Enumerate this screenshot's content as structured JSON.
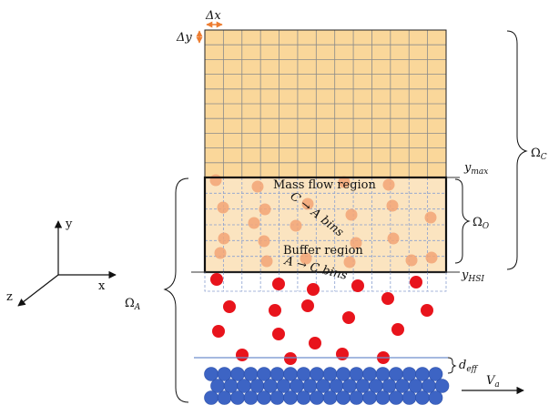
{
  "labels": {
    "dx": "Δx",
    "dy": "Δy",
    "ymax": "y",
    "ymax_sub": "max",
    "yhsi": "y",
    "yhsi_sub": "HSI",
    "deff": "d",
    "deff_sub": "eff",
    "va": "V",
    "va_sub": "a",
    "omega_c": "Ω",
    "omega_c_sub": "C",
    "omega_o": "Ω",
    "omega_o_sub": "O",
    "omega_a": "Ω",
    "omega_a_sub": "A",
    "mass_flow": "Mass flow region",
    "buffer": "Buffer region",
    "c_to_a": "C → A bins",
    "a_to_c": "A → C bins",
    "axis_x": "x",
    "axis_y": "y",
    "axis_z": "z"
  },
  "colors": {
    "grid_fill": "#fad79a",
    "overlap_fill": "#fbe4c0",
    "grid_line": "#8a8a8a",
    "light_particle": "#f2a476",
    "red_particle": "#e8141c",
    "blue_particle": "#3d64c4",
    "dashed_grid": "#8aa0d0",
    "delta_arrow": "#ed7d31"
  }
}
